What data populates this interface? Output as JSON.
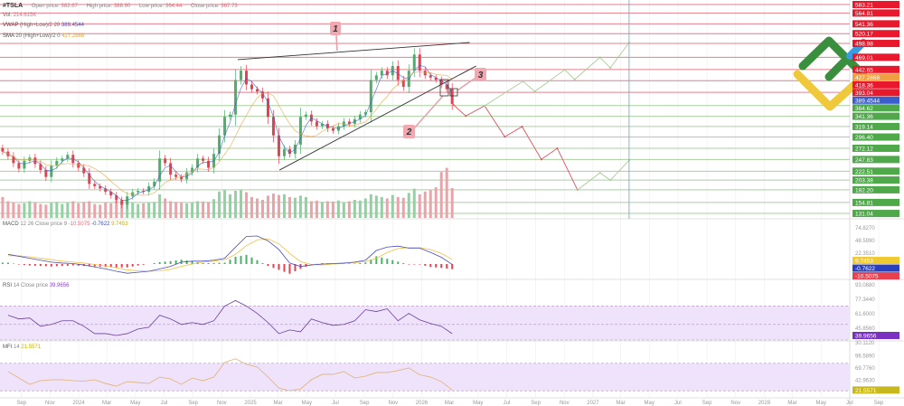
{
  "header": {
    "symbol": "#TSLA",
    "open_label": "Open price:",
    "open": "382.67",
    "high_label": "High price:",
    "high": "388.90",
    "low_label": "Low price:",
    "low": "364.44",
    "close_label": "Close price:",
    "close": "367.73",
    "vol_label": "Vol.",
    "vol": "214.615K",
    "vwap_name": "VWAP",
    "vwap_params": "(High+Low)/2 20",
    "vwap_value": "389.4544",
    "sma_name": "SMA",
    "sma_params": "20 (High+Low)/2 0",
    "sma_value": "427.2868"
  },
  "indicators": {
    "macd": {
      "name": "MACD",
      "params": "12 26 Close price 9",
      "hist": "-10.5075",
      "macd": "-0.7622",
      "signal": "9.7453"
    },
    "rsi": {
      "name": "RSI",
      "params": "14 Close price",
      "value": "39.9656"
    },
    "mfi": {
      "name": "MFI",
      "params": "14",
      "value": "21.5571"
    }
  },
  "callouts": {
    "one": "1",
    "two": "2",
    "three": "3"
  },
  "colors": {
    "up": "#4caf6a",
    "down": "#e8404f",
    "level_above": "#e8192c",
    "level_below": "#4fa84a",
    "vwap": "#3a5fcd",
    "sma": "#e8a040",
    "macd": "#4a4fbf",
    "signal": "#f0c040",
    "rsi": "#6a3f9a",
    "mfi": "#e0b070",
    "band": "#efe3fb"
  },
  "chart_data": {
    "type": "candlestick",
    "symbol": "#TSLA",
    "first_candle_date": "2023-07-23",
    "last_candle_date": "2026-03-07",
    "closes": [
      265,
      255,
      240,
      228,
      245,
      252,
      238,
      225,
      210,
      235,
      245,
      250,
      258,
      240,
      230,
      218,
      195,
      190,
      185,
      178,
      170,
      160,
      150,
      168,
      177,
      180,
      178,
      190,
      200,
      250,
      240,
      215,
      210,
      205,
      220,
      230,
      250,
      245,
      230,
      260,
      300,
      340,
      345,
      420,
      440,
      410,
      400,
      395,
      380,
      340,
      300,
      255,
      270,
      260,
      280,
      340,
      345,
      330,
      320,
      325,
      315,
      310,
      320,
      330,
      325,
      335,
      345,
      350,
      420,
      430,
      440,
      430,
      450,
      420,
      405,
      440,
      475,
      440,
      430,
      425,
      420,
      410,
      400,
      368
    ],
    "volumes_k": [
      150,
      120,
      110,
      100,
      105,
      120,
      110,
      100,
      95,
      108,
      115,
      100,
      110,
      120,
      105,
      115,
      120,
      100,
      95,
      110,
      105,
      125,
      115,
      120,
      110,
      100,
      105,
      110,
      115,
      170,
      140,
      120,
      115,
      110,
      105,
      112,
      120,
      118,
      115,
      135,
      190,
      200,
      170,
      195,
      200,
      185,
      150,
      140,
      130,
      160,
      175,
      165,
      170,
      150,
      145,
      160,
      150,
      120,
      125,
      115,
      120,
      118,
      125,
      110,
      120,
      130,
      125,
      140,
      170,
      160,
      150,
      140,
      165,
      150,
      145,
      180,
      210,
      170,
      190,
      200,
      220,
      330,
      360,
      214.615
    ],
    "levels_above": [
      "583.21",
      "564.81",
      "541.36",
      "520.17",
      "498.98",
      "469.01",
      "442.65",
      "418.36",
      "393.04"
    ],
    "levels_below": [
      "364.62",
      "341.36",
      "319.14",
      "296.40",
      "272.12",
      "247.83",
      "222.51",
      "203.38",
      "182.20",
      "154.81",
      "131.04"
    ],
    "price_badges": {
      "sma": "427.2868",
      "vwap": "389.4544"
    },
    "trendlines": [
      {
        "from": [
          "2024-12-05",
          464
        ],
        "to": [
          "2026-04-13",
          501
        ]
      },
      {
        "from": [
          "2025-03-04",
          225
        ],
        "to": [
          "2026-04-27",
          450
        ]
      }
    ],
    "forecast_bearish": [
      [
        "2026-03-10",
        366
      ],
      [
        "2026-04-05",
        342
      ],
      [
        "2026-05-15",
        364
      ],
      [
        "2026-06-27",
        297
      ],
      [
        "2026-08-03",
        319
      ],
      [
        "2026-09-13",
        248
      ],
      [
        "2026-10-17",
        272
      ],
      [
        "2026-11-29",
        182
      ]
    ],
    "forecast_bullish": [
      [
        "2026-05-15",
        364
      ],
      [
        "2026-08-05",
        417
      ],
      [
        "2026-08-30",
        395
      ],
      [
        "2026-11-02",
        442
      ],
      [
        "2026-11-23",
        421
      ],
      [
        "2027-01-16",
        469
      ],
      [
        "2027-02-07",
        446
      ],
      [
        "2027-03-19",
        501
      ]
    ],
    "forecast_rebound": [
      [
        "2026-11-29",
        182
      ],
      [
        "2027-01-16",
        219
      ],
      [
        "2027-02-07",
        203
      ],
      [
        "2027-03-19",
        246
      ]
    ],
    "marker_date": "2027-03-19",
    "macd": {
      "axis_ticks": [
        "74.8270",
        "48.5990",
        "22.3510"
      ],
      "macd": [
        20,
        16,
        12,
        8,
        4,
        2,
        1,
        -2,
        -6,
        -10,
        -15,
        -19,
        -17,
        -15,
        -10,
        -5,
        4,
        6,
        6,
        8,
        12,
        35,
        57,
        58,
        48,
        30,
        2,
        -5,
        -2,
        0,
        1,
        2,
        4,
        8,
        28,
        35,
        37,
        33,
        33,
        24,
        14,
        -0.7622
      ],
      "signal": [
        17,
        17,
        15,
        12,
        9,
        6,
        4,
        2,
        -1,
        -4,
        -8,
        -12,
        -14,
        -15,
        -14,
        -11,
        -5,
        0,
        4,
        6,
        9,
        20,
        38,
        50,
        52,
        42,
        22,
        5,
        -1,
        -2,
        0,
        1,
        3,
        5,
        12,
        24,
        32,
        34,
        34,
        30,
        22,
        9.7453
      ]
    },
    "rsi": {
      "axis_ticks": [
        "93.0880",
        "77.3440",
        "61.6000",
        "45.8560",
        "30.1120"
      ],
      "bands": [
        30,
        50,
        70
      ],
      "values": [
        60,
        56,
        57,
        48,
        50,
        54,
        54,
        48,
        40,
        40,
        38,
        40,
        45,
        47,
        60,
        56,
        50,
        52,
        50,
        54,
        70,
        76,
        70,
        62,
        52,
        40,
        44,
        42,
        56,
        52,
        49,
        50,
        54,
        66,
        64,
        67,
        54,
        62,
        55,
        51,
        48,
        39.9656
      ]
    },
    "mfi": {
      "axis_ticks": [
        "96.5890",
        "69.7760",
        "42.9630"
      ],
      "bands": [
        20,
        80
      ],
      "values": [
        62,
        48,
        34,
        42,
        44,
        44,
        42,
        41,
        44,
        36,
        30,
        40,
        38,
        36,
        50,
        46,
        34,
        48,
        42,
        50,
        82,
        90,
        78,
        72,
        50,
        26,
        20,
        24,
        44,
        56,
        56,
        62,
        48,
        52,
        60,
        60,
        64,
        70,
        55,
        50,
        40,
        21.5571
      ]
    },
    "x_ticks": [
      {
        "label": "Sep",
        "date": "2023-09-01"
      },
      {
        "label": "Nov",
        "date": "2023-11-01"
      },
      {
        "label": "2024",
        "date": "2024-01-01"
      },
      {
        "label": "Mar",
        "date": "2024-03-01"
      },
      {
        "label": "May",
        "date": "2024-05-01"
      },
      {
        "label": "Jul",
        "date": "2024-07-01"
      },
      {
        "label": "Sep",
        "date": "2024-09-01"
      },
      {
        "label": "Nov",
        "date": "2024-11-01"
      },
      {
        "label": "2025",
        "date": "2025-01-01"
      },
      {
        "label": "Mar",
        "date": "2025-03-01"
      },
      {
        "label": "May",
        "date": "2025-05-01"
      },
      {
        "label": "Jul",
        "date": "2025-07-01"
      },
      {
        "label": "Sep",
        "date": "2025-09-01"
      },
      {
        "label": "Nov",
        "date": "2025-11-01"
      },
      {
        "label": "2026",
        "date": "2026-01-01"
      },
      {
        "label": "Mar",
        "date": "2026-03-01"
      },
      {
        "label": "May",
        "date": "2026-05-01"
      },
      {
        "label": "Jul",
        "date": "2026-07-01"
      },
      {
        "label": "Sep",
        "date": "2026-09-01"
      },
      {
        "label": "Nov",
        "date": "2026-11-01"
      },
      {
        "label": "2027",
        "date": "2027-01-01"
      },
      {
        "label": "Mar",
        "date": "2027-03-01"
      },
      {
        "label": "May",
        "date": "2027-05-01"
      },
      {
        "label": "Jul",
        "date": "2027-07-01"
      },
      {
        "label": "Sep",
        "date": "2027-09-01"
      },
      {
        "label": "Nov",
        "date": "2027-11-01"
      },
      {
        "label": "2028",
        "date": "2028-01-01"
      },
      {
        "label": "Mar",
        "date": "2028-03-01"
      },
      {
        "label": "May",
        "date": "2028-05-01"
      },
      {
        "label": "Jul",
        "date": "2028-07-01"
      },
      {
        "label": "Sep",
        "date": "2028-09-01"
      }
    ]
  }
}
